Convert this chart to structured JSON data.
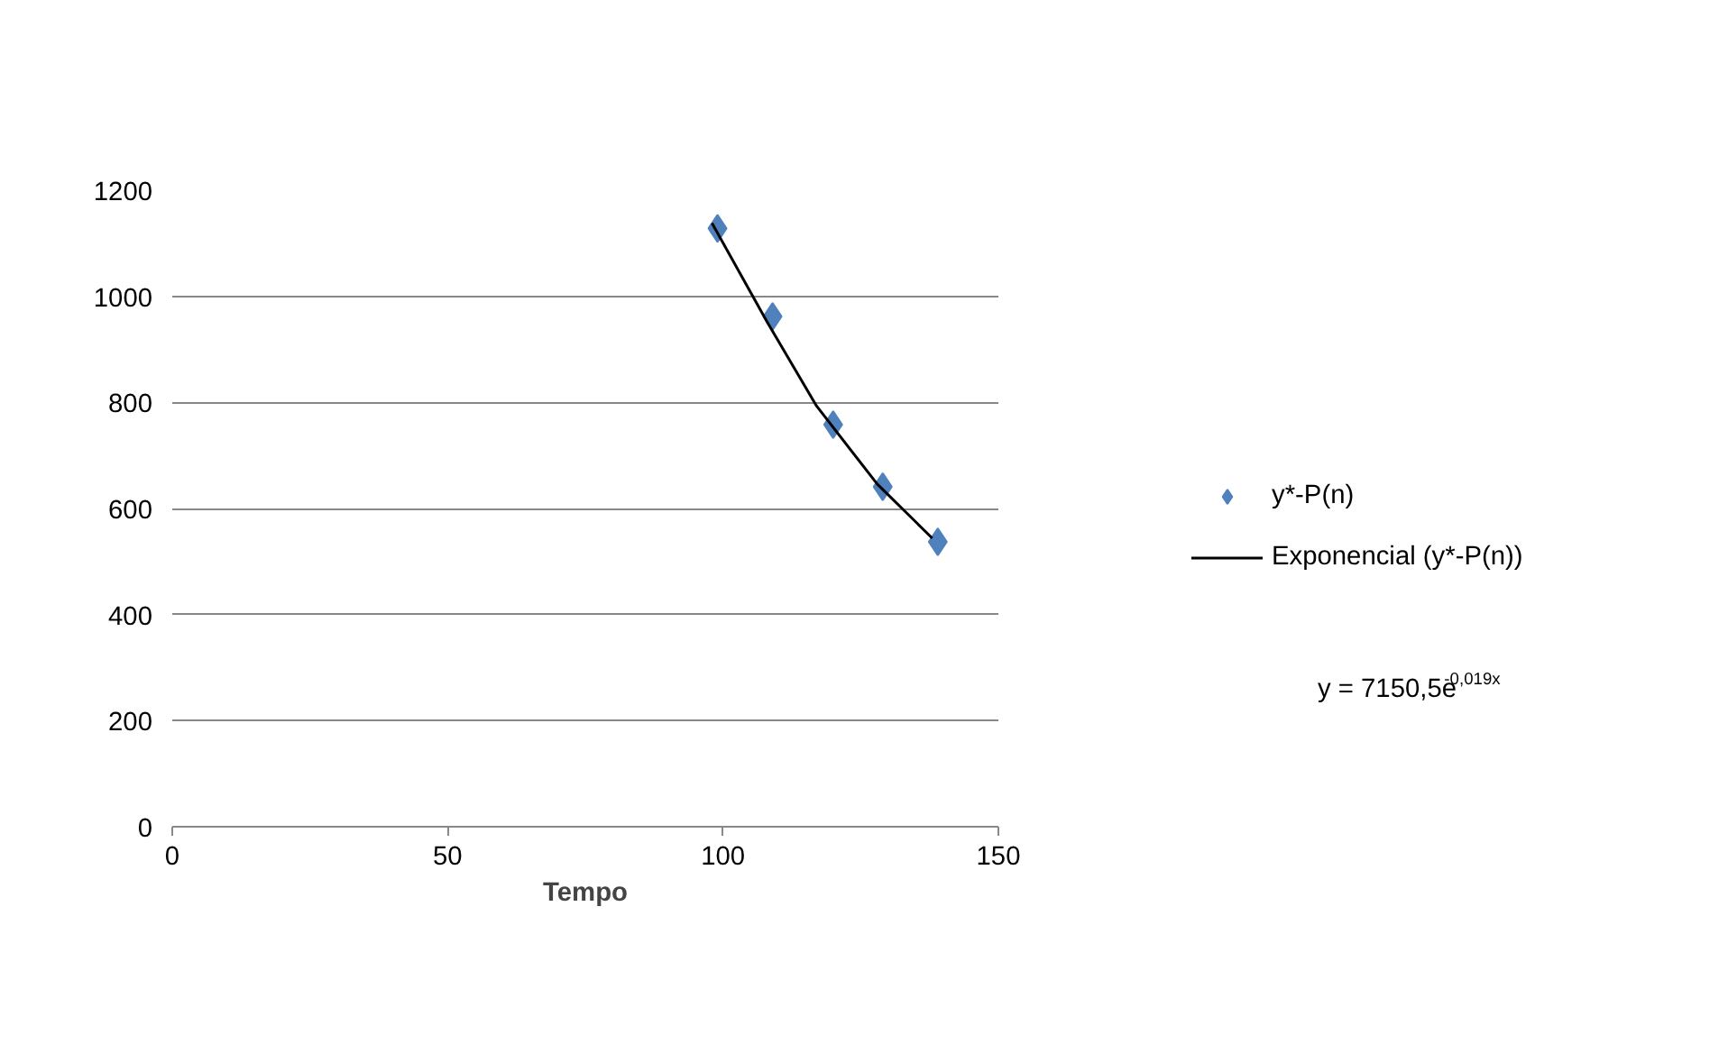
{
  "chart_data": {
    "type": "scatter",
    "xlabel": "Tempo",
    "xlim": [
      0,
      150
    ],
    "xticks": [
      0,
      50,
      100,
      150
    ],
    "ylim": [
      0,
      1200
    ],
    "yticks": [
      0,
      200,
      400,
      600,
      800,
      1000,
      1200
    ],
    "grid": "y",
    "legend": "right",
    "marker": "diamond",
    "series": [
      {
        "name": "y*-P(n)",
        "color": "#4f81bd",
        "x": [
          99,
          109,
          120,
          129,
          139
        ],
        "values": [
          1128,
          962,
          758,
          641,
          537
        ]
      },
      {
        "name": "Exponencial (y*-P(n))",
        "type": "line",
        "color": "#000000",
        "line_style": "solid",
        "marker": "none",
        "x": [
          98,
          108,
          117,
          128,
          138
        ],
        "values": [
          1138,
          952,
          793,
          646,
          544
        ]
      }
    ],
    "annotations": [
      "y = 7150,5e$^{-0,019x}$"
    ]
  }
}
